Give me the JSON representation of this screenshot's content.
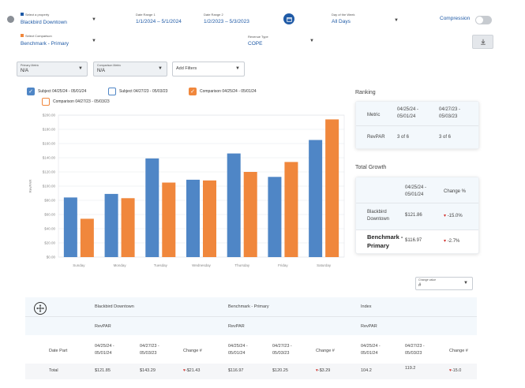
{
  "filters": {
    "property": {
      "label": "Select a property",
      "value": "Blackbird Downtown"
    },
    "date_range1": {
      "label": "Date Range 1",
      "value": "1/1/2024 – 5/1/2024"
    },
    "date_range2": {
      "label": "Date Range 2",
      "value": "1/2/2023 – 5/3/2023"
    },
    "day_of_week": {
      "label": "Day of the Week",
      "value": "All Days"
    },
    "compression": {
      "label": "Compression",
      "on": false
    },
    "comparison": {
      "label": "Select Comparison",
      "value": "Benchmark - Primary"
    },
    "revenue_type": {
      "label": "Revenue Type",
      "value": "COPE"
    },
    "primary_metric": {
      "label": "Primary Metric",
      "value": "N/A"
    },
    "comparison_metric": {
      "label": "Comparison Metric",
      "value": "N/A"
    },
    "add_filters": {
      "placeholder": "Add Filters"
    }
  },
  "legend": [
    {
      "label": "Subject 04/25/24 - 05/01/24",
      "checked": true,
      "color": "#4f86c6"
    },
    {
      "label": "Subject 04/27/23 - 05/03/23",
      "checked": false,
      "color": "#4f86c6"
    },
    {
      "label": "Comparison 04/25/24 - 05/01/24",
      "checked": true,
      "color": "#f0873c"
    },
    {
      "label": "Comparison 04/27/23 - 05/03/23",
      "checked": false,
      "color": "#f0873c"
    }
  ],
  "chart_data": {
    "type": "bar",
    "ylabel": "RevPAR",
    "ylim": [
      0,
      200
    ],
    "yticks": [
      "$0.00",
      "$20.00",
      "$40.00",
      "$60.00",
      "$80.00",
      "$100.00",
      "$120.00",
      "$140.00",
      "$160.00",
      "$180.00",
      "$200.00"
    ],
    "categories": [
      "Sunday",
      "Monday",
      "Tuesday",
      "Wednesday",
      "Thursday",
      "Friday",
      "Saturday"
    ],
    "series": [
      {
        "name": "Subject 04/25/24 - 05/01/24",
        "color": "#4f86c6",
        "values": [
          84,
          89,
          139,
          109,
          146,
          113,
          165
        ]
      },
      {
        "name": "Comparison 04/25/24 - 05/01/24",
        "color": "#f0873c",
        "values": [
          54,
          83,
          105,
          108,
          120,
          134,
          194
        ]
      }
    ],
    "grid": true
  },
  "ranking": {
    "title": "Ranking",
    "col1": "04/25/24 - 05/01/24",
    "col2": "04/27/23 - 05/03/23",
    "row_metric": "Metric",
    "row_label": "RevPAR",
    "val1": "3 of 6",
    "val2": "3 of 6"
  },
  "total_growth": {
    "title": "Total Growth",
    "col1": "04/25/24 - 05/01/24",
    "col2": "Change %",
    "rows": [
      {
        "name": "Blackbird Downtown",
        "value": "$121.86",
        "change": "-15.0%"
      },
      {
        "name": "Benchmark - Primary",
        "value": "$116.97",
        "change": "-2.7%"
      }
    ]
  },
  "change_value": {
    "label": "Change value",
    "value": "#"
  },
  "table": {
    "groups": [
      "Blackbird Downtown",
      "Benchmark - Primary",
      "Index"
    ],
    "metric": "RevPAR",
    "date_part_label": "Date Part",
    "col_a": "04/25/24 - 05/01/24",
    "col_b": "04/27/23 - 05/03/23",
    "col_change": "Change #",
    "total_label": "Total",
    "total_row": [
      {
        "a": "$121.85",
        "b": "$143.29",
        "change": "-$21.43"
      },
      {
        "a": "$116.97",
        "b": "$120.25",
        "change": "-$3.29"
      },
      {
        "a": "104.2",
        "b": "119.2",
        "change": "-15.0"
      }
    ]
  }
}
